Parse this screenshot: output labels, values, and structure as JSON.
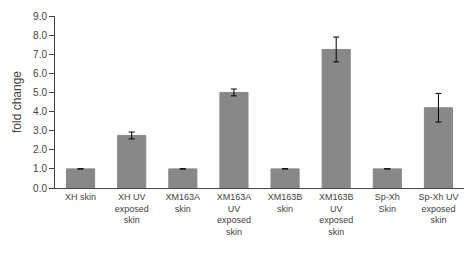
{
  "chart_data": {
    "type": "bar",
    "categories": [
      "XH skin",
      "XH UV\nexposed\nskin",
      "XM163A\nskin",
      "XM163A\nUV\nexposed\nskin",
      "XM163B\nskin",
      "XM163B\nUV\nexposed\nskin",
      "Sp-Xh\nSkin",
      "Sp-Xh UV\nexposed\nskin"
    ],
    "values": [
      1.0,
      2.75,
      1.0,
      5.0,
      1.0,
      7.25,
      1.0,
      4.2
    ],
    "errors": [
      0.0,
      0.18,
      0.0,
      0.18,
      0.0,
      0.65,
      0.0,
      0.75
    ],
    "color": "#888888",
    "ylabel": "fold change",
    "ylim": [
      0.0,
      9.0
    ],
    "yticks": [
      {
        "value": 0,
        "label": "0.0"
      },
      {
        "value": 1,
        "label": "1.0"
      },
      {
        "value": 2,
        "label": "2.0"
      },
      {
        "value": 3,
        "label": "3.0"
      },
      {
        "value": 4,
        "label": "4.0"
      },
      {
        "value": 5,
        "label": "5.0"
      },
      {
        "value": 6,
        "label": "6.0"
      },
      {
        "value": 7,
        "label": "7.0"
      },
      {
        "value": 8,
        "label": "8.0"
      },
      {
        "value": 9,
        "label": "9.0"
      }
    ],
    "grid": false
  }
}
